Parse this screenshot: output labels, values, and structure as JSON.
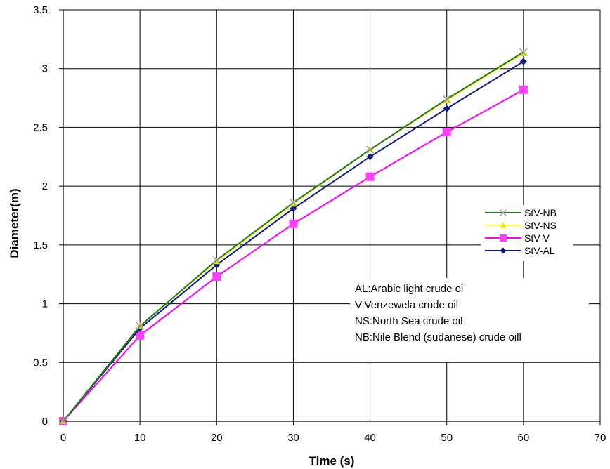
{
  "chart_data": {
    "type": "line",
    "xlabel": "Time (s)",
    "ylabel": "Diameter(m)",
    "xlim": [
      0,
      70
    ],
    "ylim": [
      0,
      3.5
    ],
    "x_ticks": [
      "0",
      "10",
      "20",
      "30",
      "40",
      "50",
      "60",
      "70"
    ],
    "y_ticks": [
      "0",
      "0.5",
      "1",
      "1.5",
      "2",
      "2.5",
      "3",
      "3.5"
    ],
    "grid": true,
    "legend_position": "right",
    "x": [
      0,
      10,
      20,
      30,
      40,
      50,
      60
    ],
    "series": [
      {
        "name": "StV-NB",
        "color": "#1a7a1a",
        "marker": "x",
        "marker_color": "#999999",
        "values": [
          0,
          0.81,
          1.37,
          1.86,
          2.31,
          2.74,
          3.14
        ]
      },
      {
        "name": "StV-NS",
        "color": "#ffff33",
        "marker": "triangle",
        "marker_color": "#e6e600",
        "values": [
          0,
          0.81,
          1.36,
          1.85,
          2.31,
          2.73,
          3.13
        ]
      },
      {
        "name": "StV-V",
        "color": "#ff00ff",
        "marker": "square",
        "marker_color": "#ff40ff",
        "values": [
          0,
          0.73,
          1.23,
          1.68,
          2.08,
          2.46,
          2.82
        ]
      },
      {
        "name": "StV-AL",
        "color": "#0d1a80",
        "marker": "diamond",
        "marker_color": "#0d1a80",
        "values": [
          0,
          0.79,
          1.33,
          1.81,
          2.25,
          2.66,
          3.06
        ]
      }
    ],
    "annotations": [
      "AL:Arabic light crude oi",
      "V:Venzewela crude oil",
      "NS:North Sea crude oil",
      "NB:Nile Blend (sudanese) crude oill"
    ]
  }
}
